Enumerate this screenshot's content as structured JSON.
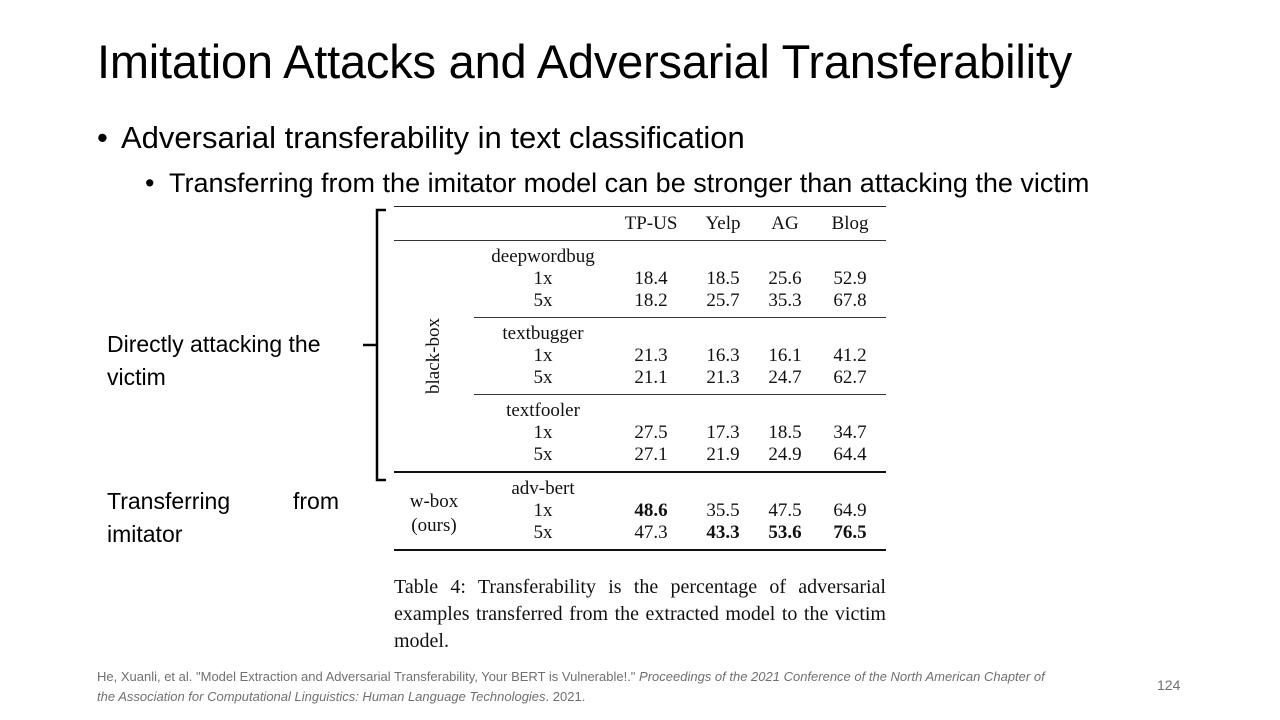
{
  "slide": {
    "title": "Imitation Attacks and Adversarial Transferability",
    "bullet_l1": "Adversarial transferability in text classification",
    "bullet_l2": "Transferring from the imitator model can be stronger than attacking the victim",
    "bullet_symbol": "•",
    "label_direct": "Directly attacking the victim",
    "label_transfer": "Transferring from imitator",
    "page_number": "124"
  },
  "table": {
    "columns": [
      "TP-US",
      "Yelp",
      "AG",
      "Blog"
    ],
    "black_box_label": "black-box",
    "wbox_label_line1": "w-box",
    "wbox_label_line2": "(ours)",
    "groups": [
      {
        "method": "deepwordbug",
        "rows": [
          {
            "mult": "1x",
            "values": [
              "18.4",
              "18.5",
              "25.6",
              "52.9"
            ]
          },
          {
            "mult": "5x",
            "values": [
              "18.2",
              "25.7",
              "35.3",
              "67.8"
            ]
          }
        ]
      },
      {
        "method": "textbugger",
        "rows": [
          {
            "mult": "1x",
            "values": [
              "21.3",
              "16.3",
              "16.1",
              "41.2"
            ]
          },
          {
            "mult": "5x",
            "values": [
              "21.1",
              "21.3",
              "24.7",
              "62.7"
            ]
          }
        ]
      },
      {
        "method": "textfooler",
        "rows": [
          {
            "mult": "1x",
            "values": [
              "27.5",
              "17.3",
              "18.5",
              "34.7"
            ]
          },
          {
            "mult": "5x",
            "values": [
              "27.1",
              "21.9",
              "24.9",
              "64.4"
            ]
          }
        ]
      },
      {
        "method": "adv-bert",
        "rows": [
          {
            "mult": "1x",
            "values": [
              "48.6",
              "35.5",
              "47.5",
              "64.9"
            ]
          },
          {
            "mult": "5x",
            "values": [
              "47.3",
              "43.3",
              "53.6",
              "76.5"
            ]
          }
        ]
      }
    ],
    "caption": "Table 4: Transferability is the percentage of adversarial examples transferred from the extracted model to the victim model."
  },
  "citation": {
    "authors": "He, Xuanli, et al. ",
    "title": "\"Model Extraction and Adversarial Transferability, Your BERT is Vulnerable!.\" ",
    "venue": "Proceedings of the 2021 Conference of the North American Chapter of the Association for Computational Linguistics: Human Language Technologies",
    "year": ". 2021."
  }
}
